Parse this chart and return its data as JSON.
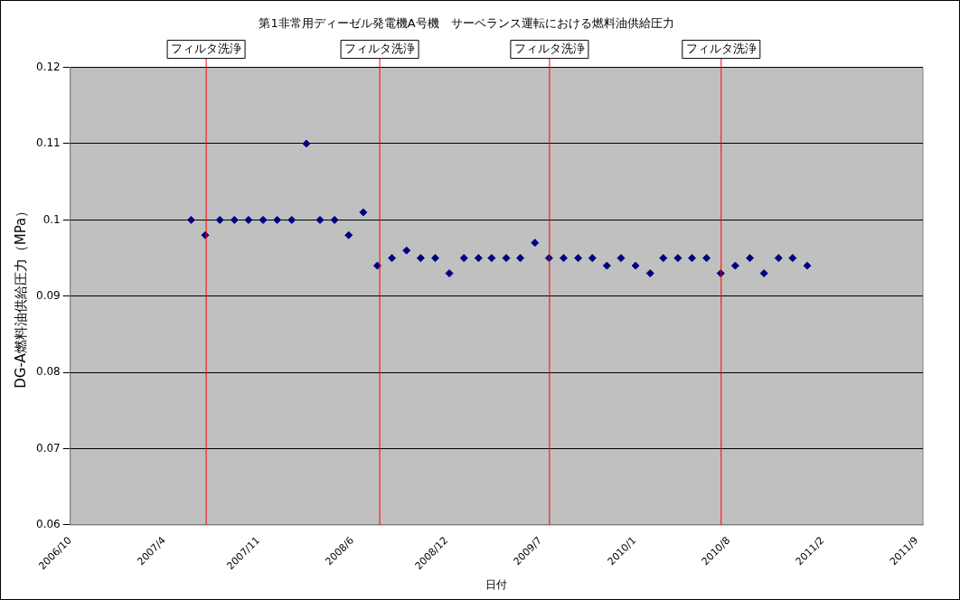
{
  "chart_data": {
    "type": "scatter",
    "title": "第1非常用ディーゼル発電機A号機　サーベランス運転における燃料油供給圧力",
    "xlabel": "日付",
    "ylabel": "DG-A燃料油供給圧力（MPa）",
    "x": [
      "2007-06-20",
      "2007-07-20",
      "2007-08-20",
      "2007-09-20",
      "2007-10-20",
      "2007-11-20",
      "2007-12-20",
      "2008-01-20",
      "2008-02-20",
      "2008-03-20",
      "2008-04-20",
      "2008-05-20",
      "2008-06-20",
      "2008-07-20",
      "2008-08-20",
      "2008-09-20",
      "2008-10-20",
      "2008-11-20",
      "2008-12-20",
      "2009-01-20",
      "2009-02-20",
      "2009-03-20",
      "2009-04-20",
      "2009-05-20",
      "2009-06-20",
      "2009-07-20",
      "2009-08-20",
      "2009-09-20",
      "2009-10-20",
      "2009-11-20",
      "2009-12-20",
      "2010-01-20",
      "2010-02-20",
      "2010-03-20",
      "2010-04-20",
      "2010-05-20",
      "2010-06-20",
      "2010-07-20",
      "2010-08-20",
      "2010-09-20",
      "2010-10-20",
      "2010-11-20",
      "2010-12-20",
      "2011-01-20"
    ],
    "series": [
      {
        "color": "#000080",
        "values": [
          0.1,
          0.098,
          0.1,
          0.1,
          0.1,
          0.1,
          0.1,
          0.1,
          0.11,
          0.1,
          0.1,
          0.098,
          0.101,
          0.094,
          0.095,
          0.096,
          0.095,
          0.095,
          0.093,
          0.095,
          0.095,
          0.095,
          0.095,
          0.095,
          0.097,
          0.095,
          0.095,
          0.095,
          0.095,
          0.094,
          0.095,
          0.094,
          0.093,
          0.095,
          0.095,
          0.095,
          0.095,
          0.093,
          0.094,
          0.095,
          0.093,
          0.095,
          0.095,
          0.094
        ]
      }
    ],
    "xlim": [
      "2006-10-06",
      "2011-09-23"
    ],
    "xticks": [
      {
        "value": "2006-10-06",
        "label": "2006/10"
      },
      {
        "value": "2007-04-24",
        "label": "2007/4"
      },
      {
        "value": "2007-11-10",
        "label": "2007/11"
      },
      {
        "value": "2008-05-28",
        "label": "2008/6"
      },
      {
        "value": "2008-12-14",
        "label": "2008/12"
      },
      {
        "value": "2009-07-02",
        "label": "2009/7"
      },
      {
        "value": "2010-01-18",
        "label": "2010/1"
      },
      {
        "value": "2010-08-06",
        "label": "2010/8"
      },
      {
        "value": "2011-02-22",
        "label": "2011/2"
      },
      {
        "value": "2011-09-10",
        "label": "2011/9"
      }
    ],
    "ylim": [
      0.06,
      0.12
    ],
    "yticks": [
      0.06,
      0.07,
      0.08,
      0.09,
      0.1,
      0.11,
      0.12
    ],
    "ref_lines": [
      {
        "axis": "x",
        "value": "2007-07-22",
        "label": "フィルタ洗浄",
        "color": "#ff0000"
      },
      {
        "axis": "x",
        "value": "2008-07-25",
        "label": "フィルタ洗浄",
        "color": "#ff0000"
      },
      {
        "axis": "x",
        "value": "2009-07-21",
        "label": "フィルタ洗浄",
        "color": "#ff0000"
      },
      {
        "axis": "x",
        "value": "2010-07-21",
        "label": "フィルタ洗浄",
        "color": "#ff0000"
      }
    ],
    "grid": "y",
    "legend": false,
    "marker": "diamond"
  }
}
